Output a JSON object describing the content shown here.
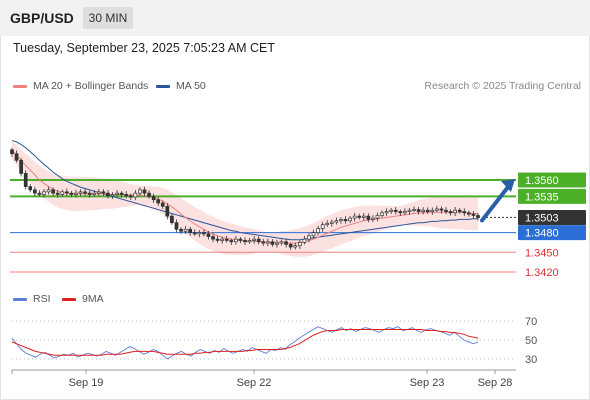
{
  "header": {
    "symbol": "GBP/USD",
    "interval": "30 MIN"
  },
  "datetime": "Tuesday, September 23, 2025 7:05:23 AM CET",
  "legend": {
    "ma20": {
      "label": "MA 20 + Bollinger Bands",
      "color": "#f08080"
    },
    "ma50": {
      "label": "MA 50",
      "color": "#2a5597"
    }
  },
  "copyright": "Research © 2025 Trading Central",
  "rsi_legend": {
    "rsi": {
      "label": "RSI",
      "color": "#5b7fd6"
    },
    "ma": {
      "label": "9MA",
      "color": "#e02020"
    }
  },
  "chart_data": [
    {
      "type": "candlestick",
      "x_labels": [
        "Sep 19",
        "Sep 22",
        "Sep 23",
        "Sep 28"
      ],
      "y_range": [
        1.3405,
        1.3585
      ],
      "current_price": {
        "label": "1.3503",
        "value": 1.3503
      },
      "levels": [
        {
          "label": "1.3560",
          "value": 1.356,
          "kind": "resistance",
          "color": "#4caf28"
        },
        {
          "label": "1.3535",
          "value": 1.3535,
          "kind": "resistance",
          "color": "#4caf28"
        },
        {
          "label": "1.3480",
          "value": 1.348,
          "kind": "pivot",
          "color": "#2b6fd6"
        },
        {
          "label": "1.3450",
          "value": 1.345,
          "kind": "support",
          "color": "#f08080"
        },
        {
          "label": "1.3420",
          "value": 1.342,
          "kind": "support",
          "color": "#f08080"
        }
      ],
      "ohlc_close": [
        1.36,
        1.359,
        1.357,
        1.355,
        1.3545,
        1.354,
        1.3538,
        1.3542,
        1.3545,
        1.354,
        1.3538,
        1.3542,
        1.354,
        1.3538,
        1.354,
        1.3542,
        1.354,
        1.3538,
        1.354,
        1.3542,
        1.354,
        1.3536,
        1.3538,
        1.354,
        1.3538,
        1.3536,
        1.3534,
        1.354,
        1.3545,
        1.354,
        1.3535,
        1.353,
        1.3525,
        1.352,
        1.3505,
        1.3495,
        1.3485,
        1.3482,
        1.3485,
        1.348,
        1.3478,
        1.348,
        1.3478,
        1.3474,
        1.347,
        1.3468,
        1.347,
        1.3468,
        1.3466,
        1.347,
        1.3468,
        1.3466,
        1.3468,
        1.347,
        1.3466,
        1.3464,
        1.3466,
        1.3462,
        1.3464,
        1.3466,
        1.3462,
        1.3458,
        1.346,
        1.3465,
        1.347,
        1.3475,
        1.348,
        1.3486,
        1.3492,
        1.3494,
        1.3496,
        1.3498,
        1.35,
        1.3498,
        1.3502,
        1.3505,
        1.3503,
        1.3505,
        1.35,
        1.3502,
        1.3506,
        1.351,
        1.3512,
        1.3514,
        1.3512,
        1.351,
        1.3512,
        1.3514,
        1.3515,
        1.3512,
        1.3514,
        1.3512,
        1.3514,
        1.3516,
        1.3514,
        1.3512,
        1.351,
        1.3514,
        1.3512,
        1.351,
        1.3508,
        1.3506,
        1.3503
      ],
      "ma20": [
        1.3605,
        1.3598,
        1.359,
        1.3582,
        1.3575,
        1.3568,
        1.356,
        1.3555,
        1.355,
        1.3546,
        1.3543,
        1.3541,
        1.354,
        1.3539,
        1.3539,
        1.3539,
        1.3539,
        1.3539,
        1.3539,
        1.3539,
        1.3539,
        1.3539,
        1.3538,
        1.3538,
        1.3538,
        1.3537,
        1.3537,
        1.3537,
        1.3537,
        1.3536,
        1.3535,
        1.3533,
        1.3531,
        1.3528,
        1.3524,
        1.3519,
        1.3514,
        1.3508,
        1.3503,
        1.3498,
        1.3493,
        1.3489,
        1.3485,
        1.3481,
        1.3478,
        1.3475,
        1.3473,
        1.3471,
        1.347,
        1.3469,
        1.3468,
        1.3467,
        1.3467,
        1.3467,
        1.3466,
        1.3466,
        1.3465,
        1.3465,
        1.3465,
        1.3465,
        1.3464,
        1.3464,
        1.3464,
        1.3465,
        1.3466,
        1.3468,
        1.347,
        1.3473,
        1.3476,
        1.3479,
        1.3482,
        1.3485,
        1.3488,
        1.349,
        1.3492,
        1.3494,
        1.3496,
        1.3498,
        1.3499,
        1.35,
        1.3501,
        1.3502,
        1.3503,
        1.3504,
        1.3505,
        1.3506,
        1.3507,
        1.3508,
        1.3509,
        1.351,
        1.351,
        1.3511,
        1.3511,
        1.3511,
        1.3511,
        1.3511,
        1.3511,
        1.3511,
        1.3511,
        1.351,
        1.351,
        1.3509,
        1.3509
      ],
      "ma50": [
        1.362,
        1.3618,
        1.3614,
        1.3609,
        1.3603,
        1.3597,
        1.359,
        1.3584,
        1.3578,
        1.3572,
        1.3567,
        1.3562,
        1.3558,
        1.3555,
        1.3552,
        1.3549,
        1.3547,
        1.3545,
        1.3543,
        1.3541,
        1.3539,
        1.3537,
        1.3535,
        1.3533,
        1.3531,
        1.3529,
        1.3527,
        1.3525,
        1.3523,
        1.3521,
        1.3519,
        1.3517,
        1.3515,
        1.3513,
        1.3511,
        1.3509,
        1.3507,
        1.3505,
        1.3503,
        1.3501,
        1.3499,
        1.3497,
        1.3495,
        1.3493,
        1.3491,
        1.3489,
        1.3487,
        1.3485,
        1.3483,
        1.3482,
        1.348,
        1.3479,
        1.3478,
        1.3477,
        1.3476,
        1.3475,
        1.3474,
        1.3473,
        1.3472,
        1.3471,
        1.347,
        1.3469,
        1.3469,
        1.3469,
        1.347,
        1.3471,
        1.3472,
        1.3473,
        1.3474,
        1.3475,
        1.3476,
        1.3477,
        1.3478,
        1.3479,
        1.348,
        1.3481,
        1.3482,
        1.3483,
        1.3484,
        1.3485,
        1.3486,
        1.3487,
        1.3488,
        1.3489,
        1.349,
        1.3491,
        1.3492,
        1.3493,
        1.3494,
        1.3495,
        1.3495,
        1.3496,
        1.3497,
        1.3497,
        1.3498,
        1.3498,
        1.3499,
        1.3499,
        1.35,
        1.35,
        1.35,
        1.3501,
        1.3501
      ],
      "forecast_arrow": {
        "from": 1.35,
        "to": 1.356
      }
    },
    {
      "type": "line",
      "name": "RSI",
      "y_ticks": [
        70,
        50,
        30
      ],
      "y_range": [
        20,
        80
      ],
      "rsi": [
        52,
        46,
        40,
        36,
        34,
        32,
        35,
        37,
        34,
        31,
        33,
        35,
        34,
        36,
        32,
        34,
        36,
        35,
        33,
        35,
        38,
        36,
        34,
        37,
        40,
        43,
        41,
        38,
        35,
        37,
        40,
        38,
        34,
        30,
        33,
        36,
        38,
        35,
        33,
        37,
        40,
        38,
        36,
        39,
        37,
        41,
        38,
        36,
        38,
        40,
        38,
        42,
        40,
        38,
        36,
        40,
        39,
        42,
        40,
        45,
        48,
        52,
        55,
        58,
        61,
        64,
        62,
        60,
        58,
        61,
        63,
        60,
        62,
        59,
        61,
        63,
        62,
        60,
        58,
        61,
        63,
        62,
        64,
        60,
        61,
        63,
        60,
        58,
        61,
        62,
        60,
        59,
        57,
        55,
        58,
        54,
        50,
        48,
        46,
        48
      ],
      "ma": [
        48,
        46,
        44,
        42,
        40,
        38,
        37,
        36,
        35,
        34,
        34,
        34,
        34,
        34,
        34,
        34,
        34,
        34,
        34,
        34,
        35,
        35,
        35,
        35,
        36,
        37,
        38,
        38,
        38,
        38,
        38,
        37,
        36,
        35,
        35,
        35,
        35,
        35,
        35,
        36,
        36,
        37,
        37,
        38,
        38,
        38,
        38,
        38,
        38,
        38,
        39,
        39,
        40,
        40,
        40,
        40,
        40,
        40,
        41,
        42,
        44,
        46,
        49,
        52,
        55,
        57,
        59,
        60,
        60,
        60,
        61,
        61,
        61,
        61,
        61,
        61,
        61,
        61,
        61,
        61,
        61,
        61,
        61,
        61,
        61,
        61,
        61,
        61,
        60,
        60,
        60,
        59,
        59,
        58,
        58,
        57,
        56,
        54,
        53,
        52
      ]
    }
  ]
}
